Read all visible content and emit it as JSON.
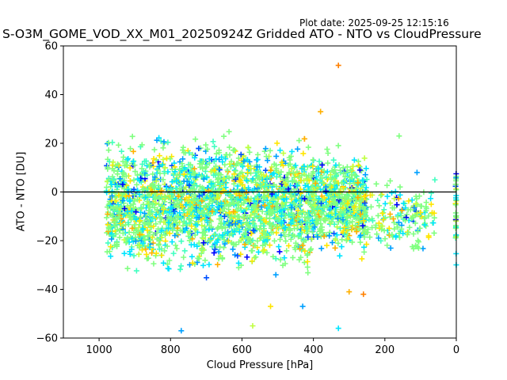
{
  "plot_date": "Plot date: 2025-09-25 12:15:16",
  "chart_data": {
    "type": "scatter",
    "title": "S-O3M_GOME_VOD_XX_M01_20250924Z Gridded ATO - NTO vs CloudPressure",
    "xlabel": "Cloud Pressure [hPa]",
    "ylabel": "ATO - NTO [DU]",
    "xlim": [
      1100,
      0
    ],
    "ylim": [
      -60,
      60
    ],
    "x_reversed": true,
    "xticks": [
      1000,
      800,
      600,
      400,
      200,
      0
    ],
    "xtick_labels": [
      "1000",
      "800",
      "600",
      "400",
      "200",
      "0"
    ],
    "yticks": [
      60,
      40,
      20,
      0,
      -20,
      -40,
      -60
    ],
    "ytick_labels": [
      "60",
      "40",
      "20",
      "0",
      "−20",
      "−40",
      "−60"
    ],
    "reference_line_y": 0,
    "marker": "+",
    "grid": false,
    "colors": [
      "#0000ff",
      "#0050ff",
      "#00a0ff",
      "#00e5ff",
      "#40ffc0",
      "#80ff80",
      "#c0ff40",
      "#ffe600",
      "#ffb000",
      "#ff8000"
    ],
    "clusters": [
      {
        "x_range": [
          980,
          250
        ],
        "y_center": -5,
        "y_spread": 22,
        "count": 2800
      },
      {
        "x_range": [
          250,
          60
        ],
        "y_center": -10,
        "y_spread": 12,
        "count": 160
      },
      {
        "x_range": [
          2,
          0
        ],
        "y_center": -12,
        "y_spread": 20,
        "count": 40
      }
    ],
    "outliers": [
      {
        "x": 330,
        "y": 52
      },
      {
        "x": 330,
        "y": -56
      },
      {
        "x": 160,
        "y": 23
      },
      {
        "x": 570,
        "y": -55
      },
      {
        "x": 380,
        "y": 33
      },
      {
        "x": 60,
        "y": 5
      },
      {
        "x": 770,
        "y": -57
      },
      {
        "x": 430,
        "y": -47
      },
      {
        "x": 520,
        "y": -47
      },
      {
        "x": 300,
        "y": -41
      },
      {
        "x": 260,
        "y": -42
      },
      {
        "x": 110,
        "y": 8
      }
    ]
  }
}
